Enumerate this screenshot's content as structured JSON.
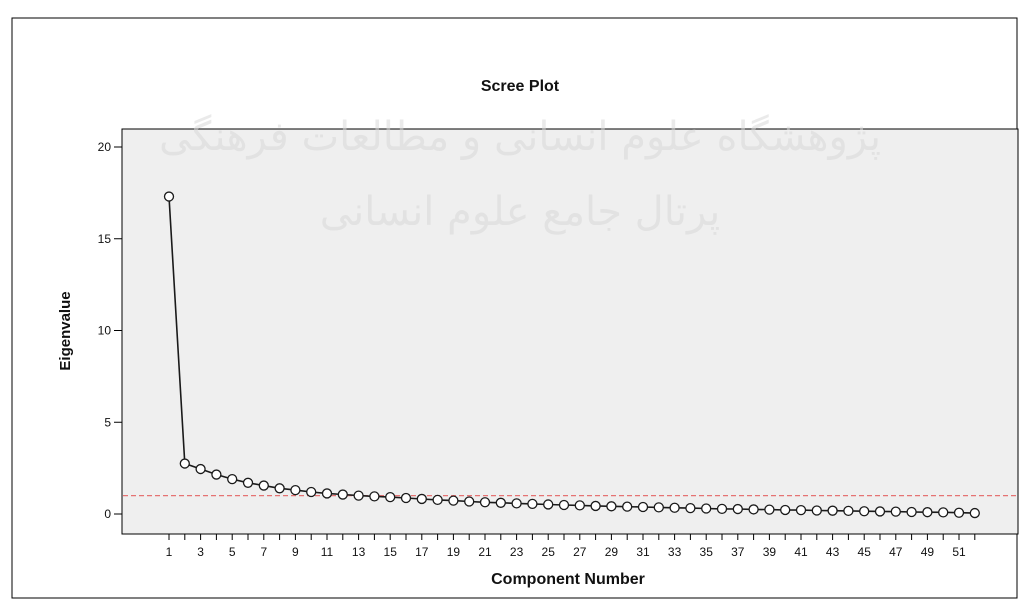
{
  "watermark": {
    "line1": "پژوهشگاه علوم انسانی و مطالعات فرهنگی",
    "line2": "پرتال جامع علوم انسانی"
  },
  "colors": {
    "plot_background": "#efefef",
    "line": "#1a1a1a",
    "marker_fill": "#ffffff",
    "reference_line": "#e57373"
  },
  "chart_data": {
    "type": "line",
    "title": "Scree Plot",
    "xlabel": "Component Number",
    "ylabel": "Eigenvalue",
    "xlim": [
      0,
      53
    ],
    "ylim": [
      -1,
      20.5
    ],
    "yticks": [
      0,
      5,
      10,
      15,
      20
    ],
    "xticks": [
      1,
      3,
      5,
      7,
      9,
      11,
      13,
      15,
      17,
      19,
      21,
      23,
      25,
      27,
      29,
      31,
      33,
      35,
      37,
      39,
      41,
      43,
      45,
      47,
      49,
      51
    ],
    "reference_line": {
      "y": 1,
      "style": "dashed"
    },
    "grid": false,
    "legend": "none",
    "series": [
      {
        "marker": "open-circle",
        "x": [
          1,
          2,
          3,
          4,
          5,
          6,
          7,
          8,
          9,
          10,
          11,
          12,
          13,
          14,
          15,
          16,
          17,
          18,
          19,
          20,
          21,
          22,
          23,
          24,
          25,
          26,
          27,
          28,
          29,
          30,
          31,
          32,
          33,
          34,
          35,
          36,
          37,
          38,
          39,
          40,
          41,
          42,
          43,
          44,
          45,
          46,
          47,
          48,
          49,
          50,
          51,
          52
        ],
        "values": [
          17.3,
          2.75,
          2.45,
          2.15,
          1.9,
          1.7,
          1.55,
          1.4,
          1.3,
          1.2,
          1.12,
          1.06,
          1.0,
          0.96,
          0.92,
          0.87,
          0.82,
          0.77,
          0.73,
          0.68,
          0.64,
          0.61,
          0.58,
          0.55,
          0.52,
          0.49,
          0.47,
          0.44,
          0.42,
          0.4,
          0.38,
          0.36,
          0.34,
          0.32,
          0.3,
          0.28,
          0.27,
          0.25,
          0.24,
          0.22,
          0.21,
          0.19,
          0.18,
          0.17,
          0.15,
          0.14,
          0.13,
          0.11,
          0.1,
          0.09,
          0.07,
          0.05
        ]
      }
    ]
  }
}
